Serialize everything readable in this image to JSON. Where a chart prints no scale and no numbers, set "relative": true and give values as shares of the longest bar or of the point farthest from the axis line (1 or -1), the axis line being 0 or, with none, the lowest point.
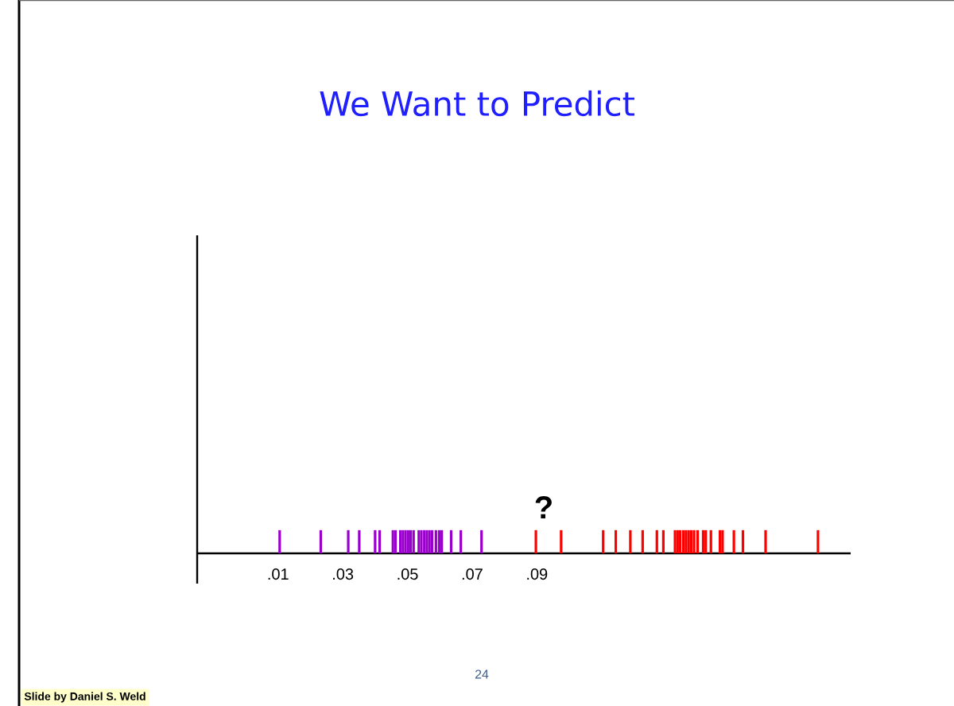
{
  "chart_data": {
    "type": "bar",
    "title": "We Want to Predict",
    "relative": true,
    "xlim": [
      -0.015,
      0.187
    ],
    "xticks": [
      {
        "value": 0.01,
        "label": ".01"
      },
      {
        "value": 0.03,
        "label": ".03"
      },
      {
        "value": 0.05,
        "label": ".05"
      },
      {
        "value": 0.07,
        "label": ".07"
      },
      {
        "value": 0.09,
        "label": ".09"
      }
    ],
    "series": [
      {
        "color": "#9900cc",
        "x": [
          0.0105,
          0.0232,
          0.0317,
          0.0351,
          0.04,
          0.0414,
          0.0455,
          0.0463,
          0.0478,
          0.0486,
          0.0494,
          0.0502,
          0.051,
          0.0519,
          0.0535,
          0.0543,
          0.0552,
          0.056,
          0.0568,
          0.0576,
          0.0588,
          0.0598,
          0.0606,
          0.0635,
          0.0665,
          0.0729
        ],
        "values": [
          1,
          1,
          1,
          1,
          1,
          1,
          1,
          1,
          1,
          1,
          1,
          1,
          1,
          1,
          1,
          1,
          1,
          1,
          1,
          1,
          1,
          1,
          1,
          1,
          1,
          1
        ]
      },
      {
        "color": "#ff0000",
        "x": [
          0.0897,
          0.0975,
          0.1105,
          0.1144,
          0.1189,
          0.1227,
          0.1271,
          0.1291,
          0.1327,
          0.1335,
          0.1343,
          0.1353,
          0.1361,
          0.1369,
          0.1377,
          0.1386,
          0.1397,
          0.1414,
          0.1422,
          0.1438,
          0.1466,
          0.1474,
          0.1509,
          0.1537,
          0.1607,
          0.1769
        ],
        "values": [
          1,
          1,
          1,
          1,
          1,
          1,
          1,
          1,
          1,
          1,
          1,
          1,
          1,
          1,
          1,
          1,
          1,
          1,
          1,
          1,
          1,
          1,
          1,
          1,
          1,
          1
        ]
      }
    ],
    "annotations": [
      "?",
      "24",
      "Slide by Daniel S. Weld"
    ]
  }
}
